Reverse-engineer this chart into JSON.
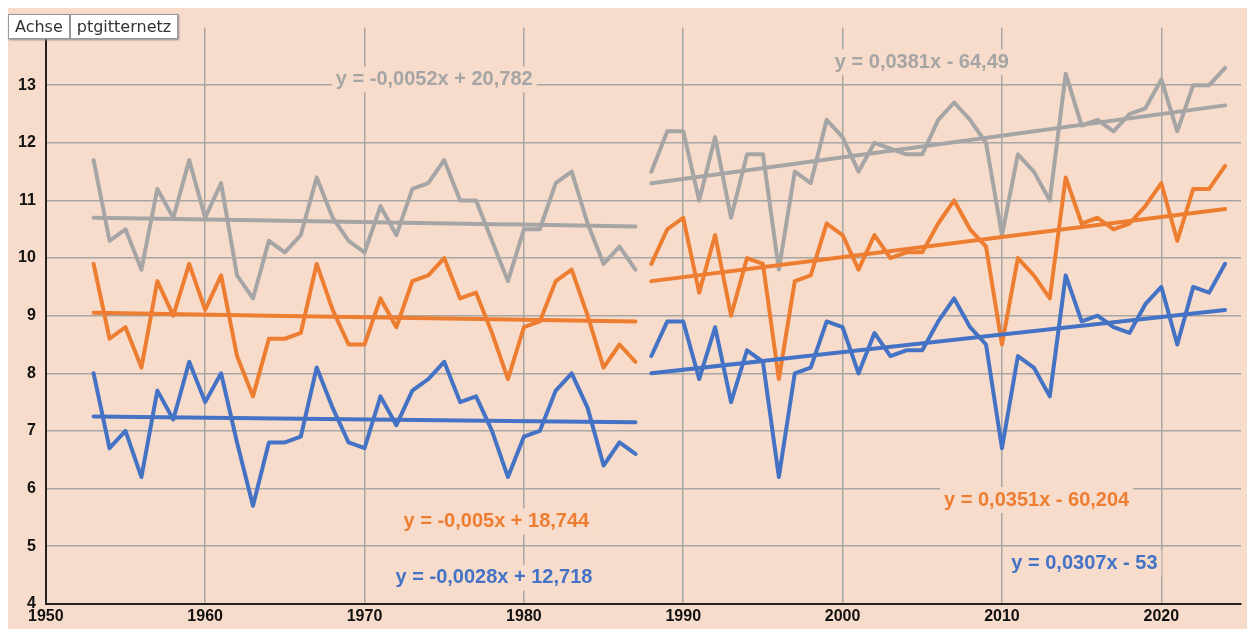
{
  "chart_data": {
    "type": "line",
    "xlim": [
      1950,
      2025
    ],
    "xticks": [
      1950,
      1960,
      1970,
      1980,
      1990,
      2000,
      2010,
      2020
    ],
    "ylim": [
      4,
      14
    ],
    "yticks": [
      4,
      5,
      6,
      7,
      8,
      9,
      10,
      11,
      12,
      13
    ],
    "grid": true,
    "legend": false,
    "marker": "none",
    "line_style": "solid",
    "series": [
      {
        "color": "#a5a5a5",
        "x": [
          1953,
          1987
        ],
        "values": [
          10.7,
          10.55
        ]
      },
      {
        "color": "#a5a5a5",
        "x": [
          1988,
          2024
        ],
        "values": [
          11.3,
          12.65
        ]
      },
      {
        "color": "#ed7d31",
        "x": [
          1953,
          1987
        ],
        "values": [
          9.05,
          8.9
        ]
      },
      {
        "color": "#ed7d31",
        "x": [
          1988,
          2024
        ],
        "values": [
          9.6,
          10.85
        ]
      },
      {
        "color": "#4472c4",
        "x": [
          1953,
          1987
        ],
        "values": [
          7.25,
          7.15
        ]
      },
      {
        "color": "#4472c4",
        "x": [
          1988,
          2024
        ],
        "values": [
          8.0,
          9.1
        ]
      },
      {
        "color": "#a5a5a5",
        "x": [
          1953,
          1954,
          1955,
          1956,
          1957,
          1958,
          1959,
          1960,
          1961,
          1962,
          1963,
          1964,
          1965,
          1966,
          1967,
          1968,
          1969,
          1970,
          1971,
          1972,
          1973,
          1974,
          1975,
          1976,
          1977,
          1978,
          1979,
          1980,
          1981,
          1982,
          1983,
          1984,
          1985,
          1986,
          1987
        ],
        "values": [
          11.7,
          10.3,
          10.5,
          9.8,
          11.2,
          10.7,
          11.7,
          10.7,
          11.3,
          9.7,
          9.3,
          10.3,
          10.1,
          10.4,
          11.4,
          10.7,
          10.3,
          10.1,
          10.9,
          10.4,
          11.2,
          11.3,
          11.7,
          11.0,
          11.0,
          10.3,
          9.6,
          10.5,
          10.5,
          11.3,
          11.5,
          10.6,
          9.9,
          10.2,
          9.8
        ]
      },
      {
        "color": "#ed7d31",
        "x": [
          1953,
          1954,
          1955,
          1956,
          1957,
          1958,
          1959,
          1960,
          1961,
          1962,
          1963,
          1964,
          1965,
          1966,
          1967,
          1968,
          1969,
          1970,
          1971,
          1972,
          1973,
          1974,
          1975,
          1976,
          1977,
          1978,
          1979,
          1980,
          1981,
          1982,
          1983,
          1984,
          1985,
          1986,
          1987
        ],
        "values": [
          9.9,
          8.6,
          8.8,
          8.1,
          9.6,
          9.0,
          9.9,
          9.1,
          9.7,
          8.3,
          7.6,
          8.6,
          8.6,
          8.7,
          9.9,
          9.1,
          8.5,
          8.5,
          9.3,
          8.8,
          9.6,
          9.7,
          10.0,
          9.3,
          9.4,
          8.7,
          7.9,
          8.8,
          8.9,
          9.6,
          9.8,
          9.0,
          8.1,
          8.5,
          8.2
        ]
      },
      {
        "color": "#4472c4",
        "x": [
          1953,
          1954,
          1955,
          1956,
          1957,
          1958,
          1959,
          1960,
          1961,
          1962,
          1963,
          1964,
          1965,
          1966,
          1967,
          1968,
          1969,
          1970,
          1971,
          1972,
          1973,
          1974,
          1975,
          1976,
          1977,
          1978,
          1979,
          1980,
          1981,
          1982,
          1983,
          1984,
          1985,
          1986,
          1987
        ],
        "values": [
          8.0,
          6.7,
          7.0,
          6.2,
          7.7,
          7.2,
          8.2,
          7.5,
          8.0,
          6.8,
          5.7,
          6.8,
          6.8,
          6.9,
          8.1,
          7.4,
          6.8,
          6.7,
          7.6,
          7.1,
          7.7,
          7.9,
          8.2,
          7.5,
          7.6,
          7.0,
          6.2,
          6.9,
          7.0,
          7.7,
          8.0,
          7.4,
          6.4,
          6.8,
          6.6
        ]
      },
      {
        "color": "#a5a5a5",
        "x": [
          1988,
          1989,
          1990,
          1991,
          1992,
          1993,
          1994,
          1995,
          1996,
          1997,
          1998,
          1999,
          2000,
          2001,
          2002,
          2003,
          2004,
          2005,
          2006,
          2007,
          2008,
          2009,
          2010,
          2011,
          2012,
          2013,
          2014,
          2015,
          2016,
          2017,
          2018,
          2019,
          2020,
          2021,
          2022,
          2023,
          2024
        ],
        "values": [
          11.5,
          12.2,
          12.2,
          11.0,
          12.1,
          10.7,
          11.8,
          11.8,
          9.8,
          11.5,
          11.3,
          12.4,
          12.1,
          11.5,
          12.0,
          11.9,
          11.8,
          11.8,
          12.4,
          12.7,
          12.4,
          12.0,
          10.4,
          11.8,
          11.5,
          11.0,
          13.2,
          12.3,
          12.4,
          12.2,
          12.5,
          12.6,
          13.1,
          12.2,
          13.0,
          13.0,
          13.3
        ]
      },
      {
        "color": "#ed7d31",
        "x": [
          1988,
          1989,
          1990,
          1991,
          1992,
          1993,
          1994,
          1995,
          1996,
          1997,
          1998,
          1999,
          2000,
          2001,
          2002,
          2003,
          2004,
          2005,
          2006,
          2007,
          2008,
          2009,
          2010,
          2011,
          2012,
          2013,
          2014,
          2015,
          2016,
          2017,
          2018,
          2019,
          2020,
          2021,
          2022,
          2023,
          2024
        ],
        "values": [
          9.9,
          10.5,
          10.7,
          9.4,
          10.4,
          9.0,
          10.0,
          9.9,
          7.9,
          9.6,
          9.7,
          10.6,
          10.4,
          9.8,
          10.4,
          10.0,
          10.1,
          10.1,
          10.6,
          11.0,
          10.5,
          10.2,
          8.5,
          10.0,
          9.7,
          9.3,
          11.4,
          10.6,
          10.7,
          10.5,
          10.6,
          10.9,
          11.3,
          10.3,
          11.2,
          11.2,
          11.6
        ]
      },
      {
        "color": "#4472c4",
        "x": [
          1988,
          1989,
          1990,
          1991,
          1992,
          1993,
          1994,
          1995,
          1996,
          1997,
          1998,
          1999,
          2000,
          2001,
          2002,
          2003,
          2004,
          2005,
          2006,
          2007,
          2008,
          2009,
          2010,
          2011,
          2012,
          2013,
          2014,
          2015,
          2016,
          2017,
          2018,
          2019,
          2020,
          2021,
          2022,
          2023,
          2024
        ],
        "values": [
          8.3,
          8.9,
          8.9,
          7.9,
          8.8,
          7.5,
          8.4,
          8.2,
          6.2,
          8.0,
          8.1,
          8.9,
          8.8,
          8.0,
          8.7,
          8.3,
          8.4,
          8.4,
          8.9,
          9.3,
          8.8,
          8.5,
          6.7,
          8.3,
          8.1,
          7.6,
          9.7,
          8.9,
          9.0,
          8.8,
          8.7,
          9.2,
          9.5,
          8.5,
          9.5,
          9.4,
          9.9
        ]
      }
    ],
    "annotations": [
      "y = -0,0052x + 20,782",
      "y = 0,0381x - 64,49",
      "y = -0,005x + 18,744",
      "y = 0,0351x - 60,204",
      "y = -0,0028x + 12,718",
      "y = 0,0307x - 53",
      "Achse",
      "ptgitternetz"
    ]
  }
}
